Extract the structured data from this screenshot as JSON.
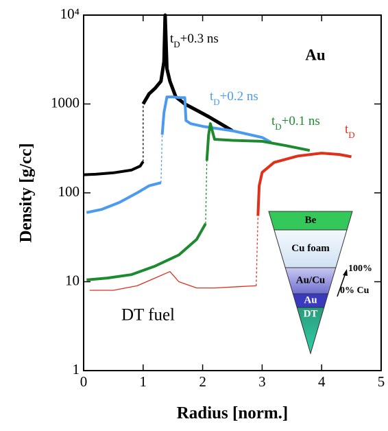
{
  "chart_data": {
    "type": "line",
    "x_label": "Radius [norm.]",
    "y_label": "Density [g/cc]",
    "xlim": [
      0,
      5
    ],
    "xticks": [
      0,
      1,
      2,
      3,
      4,
      5
    ],
    "ylim": [
      1,
      10000
    ],
    "yticks": [
      1,
      10,
      100,
      1000,
      {
        "value": 10000,
        "label": "10⁴"
      }
    ],
    "y_scale": "log",
    "series": [
      {
        "name_parts": [
          "t",
          "D",
          "+0.3 ns"
        ],
        "color": "#000000",
        "piece_widths": [
          4,
          5
        ],
        "x": [
          0,
          0.2,
          0.5,
          0.8,
          0.95,
          1.0,
          1.0,
          1.0,
          1.1,
          1.2,
          1.3,
          1.35,
          1.37,
          1.4,
          1.45,
          1.55,
          1.7,
          1.9,
          2.1,
          2.3,
          2.5
        ],
        "values": [
          160,
          162,
          168,
          180,
          200,
          225,
          null,
          1000,
          1300,
          1500,
          1800,
          3000,
          10000,
          2500,
          1800,
          1200,
          1000,
          850,
          720,
          600,
          500
        ]
      },
      {
        "name_parts": [
          "t",
          "D",
          "+0.2 ns"
        ],
        "color": "#4a9af0",
        "piece_widths": [
          4,
          4
        ],
        "x": [
          0.05,
          0.3,
          0.6,
          0.9,
          1.1,
          1.3,
          1.32,
          1.32,
          1.35,
          1.4,
          1.5,
          1.6,
          1.7,
          1.72,
          1.8,
          2.0,
          2.5,
          3.0,
          3.15
        ],
        "values": [
          60,
          65,
          78,
          100,
          120,
          130,
          null,
          450,
          800,
          1200,
          1200,
          1180,
          1180,
          650,
          600,
          560,
          500,
          420,
          370
        ]
      },
      {
        "name_parts": [
          "t",
          "D",
          "+0.1 ns"
        ],
        "color": "#1e8a2e",
        "piece_widths": [
          4,
          4
        ],
        "x": [
          0.05,
          0.4,
          0.8,
          1.2,
          1.6,
          1.9,
          2.05,
          2.06,
          2.07,
          2.1,
          2.13,
          2.2,
          2.5,
          3.0,
          3.4,
          3.8
        ],
        "values": [
          10.5,
          11,
          12,
          15,
          20,
          30,
          45,
          null,
          230,
          450,
          600,
          400,
          390,
          380,
          340,
          300
        ]
      },
      {
        "name_parts": [
          "t",
          "D"
        ],
        "color": "#e0301c",
        "piece_widths": [
          1.3,
          4
        ],
        "x": [
          0.1,
          0.5,
          0.9,
          1.2,
          1.45,
          1.6,
          1.9,
          2.2,
          2.6,
          2.9,
          2.92,
          2.93,
          2.95,
          3.0,
          3.2,
          3.6,
          4.0,
          4.3,
          4.5
        ],
        "values": [
          8,
          8,
          9,
          11,
          13,
          10,
          8.5,
          8.5,
          8.8,
          9,
          null,
          55,
          120,
          170,
          220,
          260,
          280,
          270,
          255
        ]
      }
    ],
    "annotations": [
      {
        "text": "Au"
      },
      {
        "text": "DT fuel"
      }
    ]
  },
  "inset": {
    "layers": [
      "Be",
      "Cu foam",
      "Au/Cu",
      "Au",
      "DT"
    ],
    "arrow_top": "100%",
    "arrow_bottom": "0% Cu"
  }
}
